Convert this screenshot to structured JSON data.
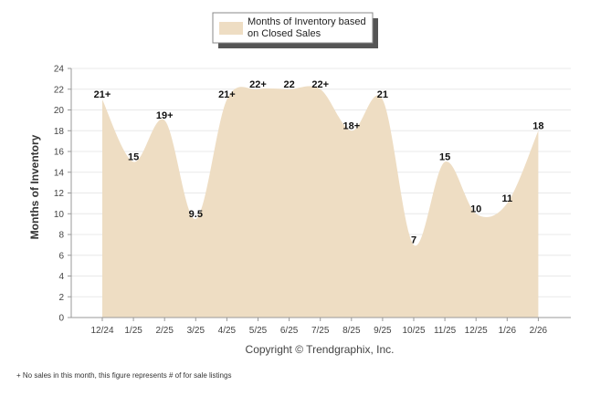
{
  "chart_data": {
    "type": "area",
    "legend": "Months of Inventory based\non Closed Sales",
    "ylabel": "Months of Inventory",
    "ylim": [
      0,
      24
    ],
    "yticks": [
      0,
      2,
      4,
      6,
      8,
      10,
      12,
      14,
      16,
      18,
      20,
      22,
      24
    ],
    "categories": [
      "12/24",
      "1/25",
      "2/25",
      "3/25",
      "4/25",
      "5/25",
      "6/25",
      "7/25",
      "8/25",
      "9/25",
      "10/25",
      "11/25",
      "12/25",
      "1/26",
      "2/26"
    ],
    "values": [
      21,
      15,
      19,
      9.5,
      21,
      22,
      22,
      22,
      18,
      21,
      7,
      15,
      10,
      11,
      18
    ],
    "labels": [
      "21+",
      "15",
      "19+",
      "9.5",
      "21+",
      "22+",
      "22",
      "22+",
      "18+",
      "21",
      "7",
      "15",
      "10",
      "11",
      "18"
    ],
    "fill_color": "#eeddc3",
    "grid": true
  },
  "copyright": "Copyright © Trendgraphix, Inc.",
  "footnote": "+  No sales in this month, this figure represents # of for sale listings"
}
